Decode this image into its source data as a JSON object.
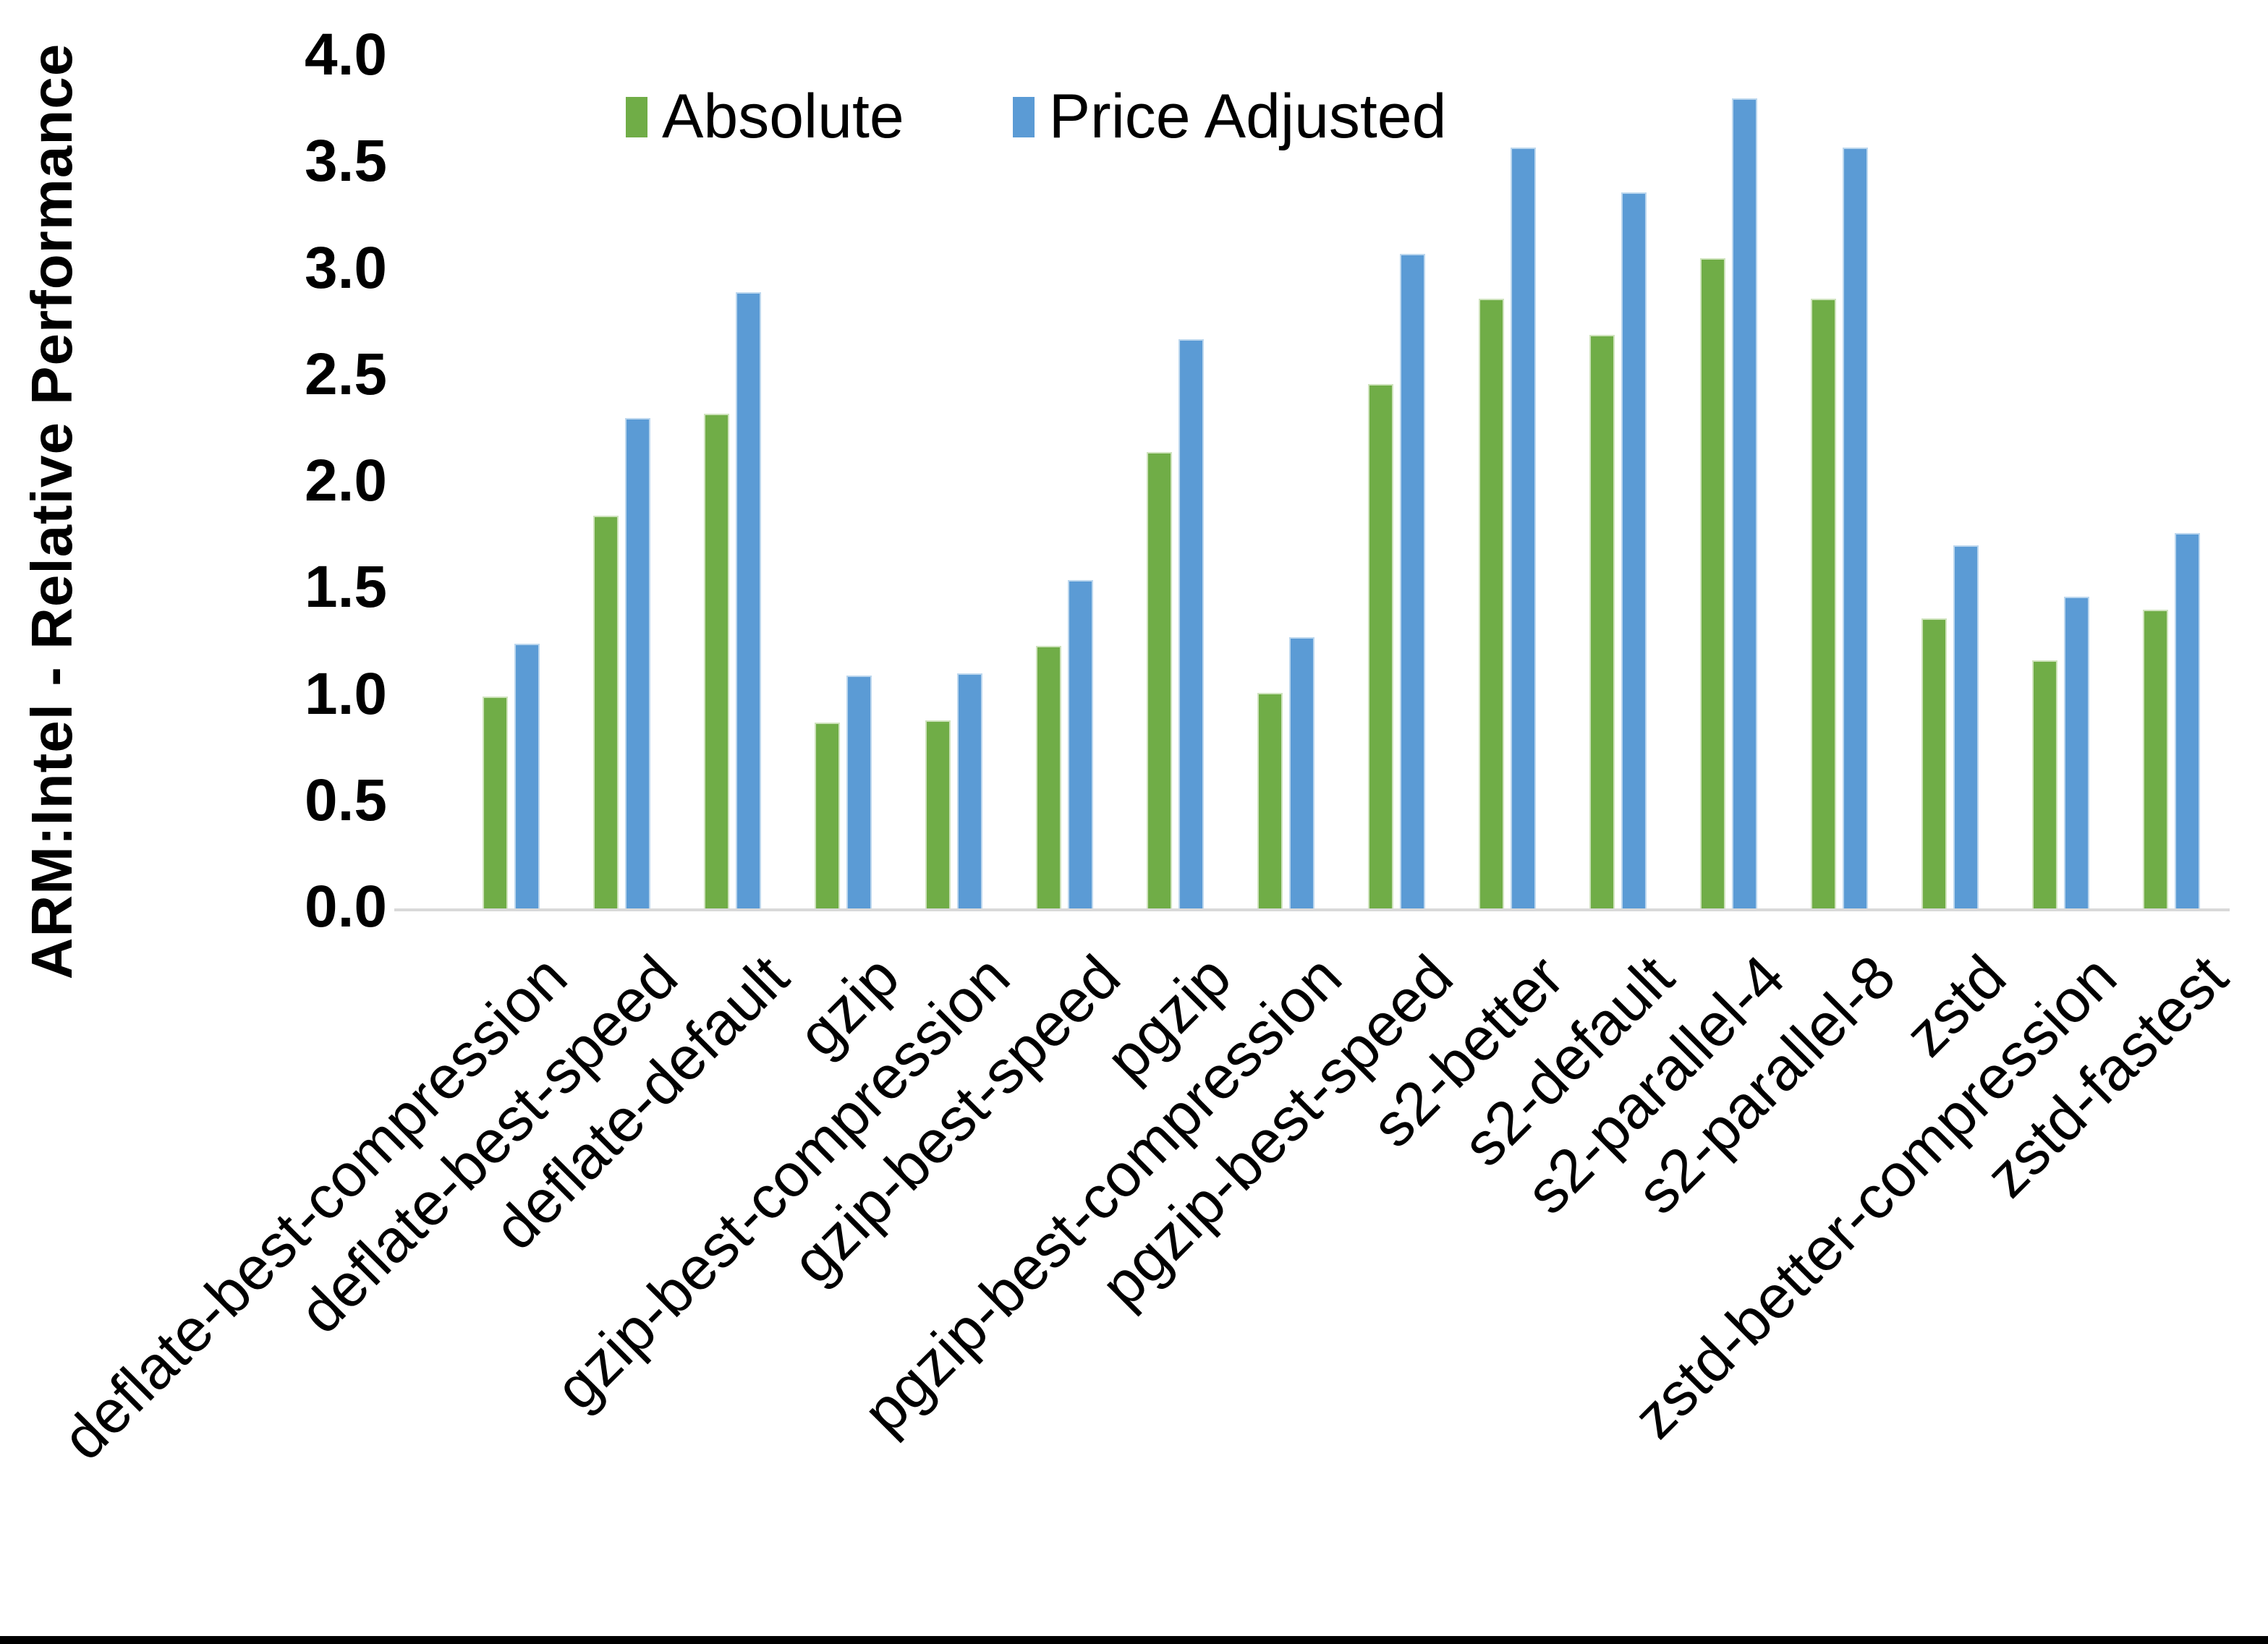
{
  "chart_data": {
    "type": "bar",
    "title": "",
    "xlabel": "",
    "ylabel": "ARM:Intel - Relative Performance",
    "ylim": [
      0.0,
      4.0
    ],
    "ytick_step": 0.5,
    "yticks": [
      "0.0",
      "0.5",
      "1.0",
      "1.5",
      "2.0",
      "2.5",
      "3.0",
      "3.5",
      "4.0"
    ],
    "grid": false,
    "legend_position": "top-center",
    "categories": [
      "deflate-best-compression",
      "deflate-best-speed",
      "deflate-default",
      "gzip",
      "gzip-best-compression",
      "gzip-best-speed",
      "pgzip",
      "pgzip-best-compression",
      "pgzip-best-speed",
      "s2-better",
      "s2-default",
      "s2-parallel-4",
      "s2-parallel-8",
      "zstd",
      "zstd-better-compression",
      "zstd-fastest"
    ],
    "series": [
      {
        "name": "Absolute",
        "color": "#70AD47",
        "values": [
          1.0,
          1.85,
          2.33,
          0.88,
          0.89,
          1.24,
          2.15,
          1.02,
          2.47,
          2.87,
          2.7,
          3.06,
          2.87,
          1.37,
          1.17,
          1.41
        ]
      },
      {
        "name": "Price Adjusted",
        "color": "#5B9BD5",
        "values": [
          1.25,
          2.31,
          2.9,
          1.1,
          1.11,
          1.55,
          2.68,
          1.28,
          3.08,
          3.58,
          3.37,
          3.81,
          3.58,
          1.71,
          1.47,
          1.77
        ]
      }
    ],
    "axis_line_color": "#D9D9D9",
    "bottom_border_color": "#000000"
  }
}
